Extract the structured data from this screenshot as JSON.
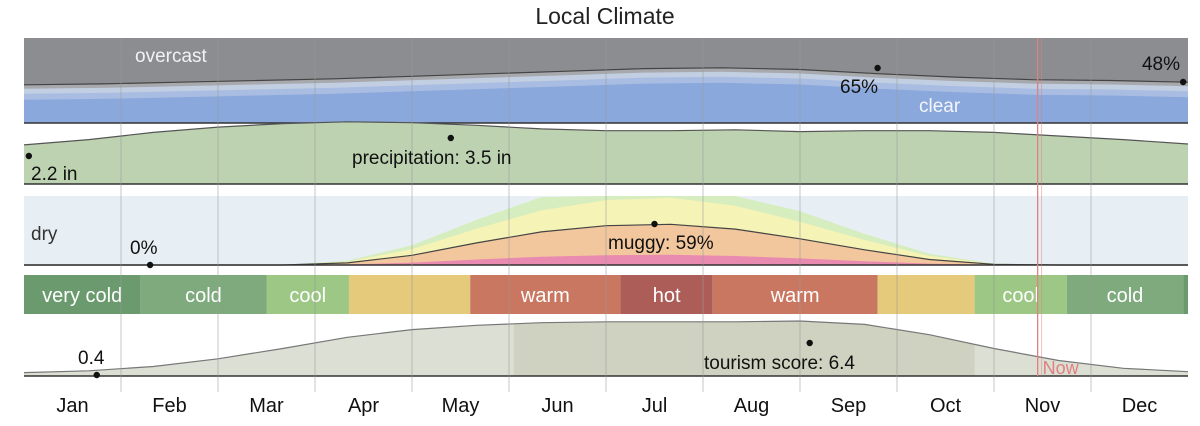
{
  "chart_data": {
    "type": "area",
    "title": "Local Climate",
    "months": [
      "Jan",
      "Feb",
      "Mar",
      "Apr",
      "May",
      "Jun",
      "Jul",
      "Aug",
      "Sep",
      "Oct",
      "Nov",
      "Dec"
    ],
    "x_range": [
      0,
      12
    ],
    "now_month": 10.45,
    "now_label": "Now",
    "cloud_cover": {
      "overcast_label": "overcast",
      "clear_label": "clear",
      "clear_pct_series": [
        45,
        46,
        48,
        50,
        52,
        55,
        58,
        61,
        64,
        65,
        63,
        58,
        54,
        51,
        50,
        48
      ],
      "annotations": [
        {
          "month": 8.8,
          "value": 65,
          "label": "65%"
        },
        {
          "month": 11.95,
          "value": 48,
          "label": "48%"
        }
      ]
    },
    "precipitation": {
      "unit": "in",
      "ylim": [
        0,
        4.5
      ],
      "series": [
        2.2,
        2.5,
        2.9,
        3.2,
        3.4,
        3.5,
        3.45,
        3.3,
        3.1,
        3.0,
        3.0,
        3.05,
        2.95,
        3.0,
        3.0,
        2.9,
        2.7,
        2.5,
        2.25
      ],
      "annotations": [
        {
          "month": 0.05,
          "value": 2.2,
          "label": "2.2 in"
        },
        {
          "month": 4.4,
          "value": 3.5,
          "label": "precipitation: 3.5 in"
        }
      ]
    },
    "humidity": {
      "dry_label": "dry",
      "muggy_pct_series": [
        0,
        0,
        0,
        0,
        0,
        3,
        14,
        32,
        48,
        57,
        59,
        52,
        38,
        22,
        8,
        1,
        0,
        0,
        0
      ],
      "annotations": [
        {
          "month": 1.3,
          "value": 0,
          "label": "0%"
        },
        {
          "month": 6.5,
          "value": 59,
          "label": "muggy: 59%"
        }
      ]
    },
    "temperature_bands": [
      {
        "start": 0.0,
        "end": 1.2,
        "label": "very cold",
        "color": "#6a9a6e"
      },
      {
        "start": 1.2,
        "end": 2.5,
        "label": "cold",
        "color": "#7faa7d"
      },
      {
        "start": 2.5,
        "end": 3.35,
        "label": "cool",
        "color": "#9cc784"
      },
      {
        "start": 3.35,
        "end": 4.6,
        "label": "",
        "color": "#e4ca7a"
      },
      {
        "start": 4.6,
        "end": 6.15,
        "label": "warm",
        "color": "#c97760"
      },
      {
        "start": 6.15,
        "end": 7.1,
        "label": "hot",
        "color": "#ad5d58"
      },
      {
        "start": 7.1,
        "end": 8.8,
        "label": "warm",
        "color": "#c97760"
      },
      {
        "start": 8.8,
        "end": 9.8,
        "label": "",
        "color": "#e4ca7a"
      },
      {
        "start": 9.8,
        "end": 10.75,
        "label": "cool",
        "color": "#9cc784"
      },
      {
        "start": 10.75,
        "end": 11.95,
        "label": "cold",
        "color": "#7faa7d"
      },
      {
        "start": 11.95,
        "end": 12.0,
        "label": "",
        "color": "#6a9a6e"
      }
    ],
    "tourism": {
      "ylim": [
        0,
        10
      ],
      "series": [
        0.4,
        0.6,
        1.1,
        2.0,
        3.2,
        4.5,
        5.4,
        5.9,
        6.2,
        6.3,
        6.3,
        6.3,
        6.4,
        6.0,
        4.8,
        3.2,
        1.8,
        0.9,
        0.5
      ],
      "best_range": [
        5.05,
        9.8
      ],
      "annotations": [
        {
          "month": 0.75,
          "value": 0.4,
          "label": "0.4"
        },
        {
          "month": 8.1,
          "value": 6.4,
          "label": "tourism score: 6.4"
        }
      ]
    }
  },
  "colors": {
    "overcast_dark": "#8c8d90",
    "overcast_mid": "#a8a9ad",
    "clear_light": "#c2cfe3",
    "clear_blue": "#a9bde2",
    "clear_deep": "#8aa8dc",
    "precip_fill": "#bdd2b0",
    "dry_bg": "#e7eff4",
    "humid_green": "#d6edbf",
    "humid_yellow": "#f5f3b6",
    "humid_orange": "#f2c79d",
    "humid_pink": "#e98ab0",
    "tourism_fill": "#dcdfd3",
    "tourism_best": "#cfd2c0",
    "now_line": "#e08080"
  }
}
